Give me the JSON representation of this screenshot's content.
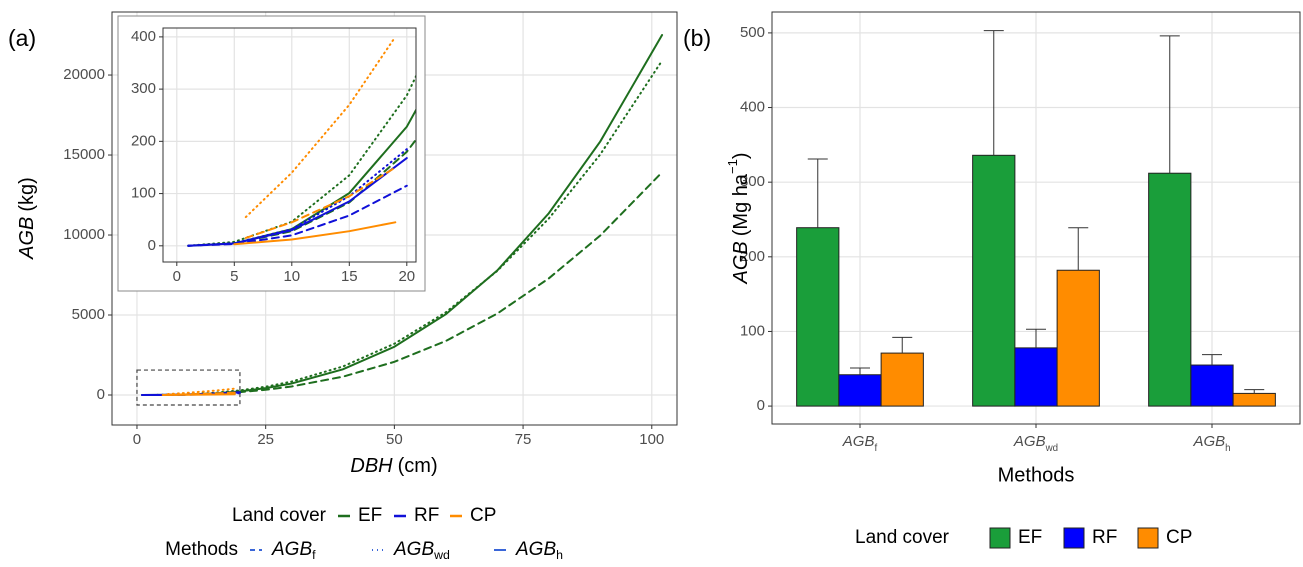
{
  "chart_data": [
    {
      "type": "line",
      "tag": "(a)",
      "xlabel": {
        "var": "DBH",
        "unit": "(cm)"
      },
      "ylabel": {
        "var": "AGB",
        "unit": "(kg)"
      },
      "xlim": [
        -4.85,
        104.9
      ],
      "ylim": [
        -1875,
        23940
      ],
      "xticks": [
        0,
        25,
        50,
        75,
        100
      ],
      "yticks": [
        0,
        5000,
        10000,
        15000,
        20000
      ],
      "grid": true,
      "legend_position": "bottom",
      "legend_titles": {
        "land_cover": "Land cover",
        "methods": "Methods"
      },
      "method_legend_color": "#3a66d8",
      "methods": [
        {
          "name": "AGB",
          "sub": "f",
          "dash": "dashed"
        },
        {
          "name": "AGB",
          "sub": "wd",
          "dash": "dotted"
        },
        {
          "name": "AGB",
          "sub": "h",
          "dash": "solid"
        }
      ],
      "series": [
        {
          "name": "EF",
          "color": "#1e6e1e",
          "lines": [
            {
              "x": [
                1,
                5,
                10,
                15,
                20,
                25,
                30,
                40,
                50,
                60,
                70,
                80,
                90,
                102
              ],
              "values": [
                0.06,
                4.4,
                28,
                83,
                180,
                326,
                531,
                1145,
                2072,
                3377,
                5093,
                7290,
                9970,
                13920
              ]
            },
            {
              "x": [
                1,
                5,
                10,
                15,
                20,
                25,
                30,
                40,
                50,
                60,
                70,
                80,
                90,
                102
              ],
              "values": [
                0.11,
                7.5,
                46,
                135,
                288,
                517,
                836,
                1783,
                3205,
                5170,
                7760,
                11030,
                15040,
                20900
              ]
            },
            {
              "x": [
                1,
                5,
                10,
                15,
                20,
                25,
                30,
                40,
                50,
                60,
                70,
                80,
                90,
                102
              ],
              "values": [
                0.05,
                4.6,
                32,
                101,
                228,
                427,
                714,
                1606,
                3015,
                5050,
                7790,
                11360,
                15850,
                22500
              ]
            }
          ]
        },
        {
          "name": "RF",
          "color": "#1010d8",
          "lines": [
            {
              "x": [
                1,
                5,
                10,
                15,
                20
              ],
              "values": [
                0.05,
                3.5,
                20,
                58,
                115
              ]
            },
            {
              "x": [
                1,
                5,
                10,
                15,
                20
              ],
              "values": [
                0.1,
                5,
                32,
                95,
                185
              ]
            },
            {
              "x": [
                1,
                5,
                10,
                15,
                20
              ],
              "values": [
                0.06,
                4.5,
                30,
                85,
                168
              ]
            }
          ]
        },
        {
          "name": "CP",
          "color": "#ff8c00",
          "lines": [
            {
              "x": [
                6,
                10,
                15,
                19
              ],
              "values": [
                15,
                45,
                95,
                150
              ]
            },
            {
              "x": [
                6,
                10,
                15,
                19
              ],
              "values": [
                55,
                140,
                270,
                400
              ]
            },
            {
              "x": [
                5,
                10,
                15,
                19
              ],
              "values": [
                3,
                12,
                28,
                45
              ]
            }
          ]
        }
      ],
      "zoom_box": {
        "xlim": [
          0,
          20
        ],
        "ylim": [
          -625,
          1560
        ]
      },
      "inset": {
        "xlim": [
          -1.2,
          20.8
        ],
        "ylim": [
          -31,
          417
        ],
        "xticks": [
          0,
          5,
          10,
          15,
          20
        ],
        "yticks": [
          0,
          100,
          200,
          300,
          400
        ]
      }
    },
    {
      "type": "bar",
      "tag": "(b)",
      "xlabel": "Methods",
      "ylabel": {
        "var": "AGB",
        "unit": "(Mg ha",
        "unit_exp": "−1",
        "unit_close": ")"
      },
      "categories": [
        {
          "name": "AGB",
          "sub": "f"
        },
        {
          "name": "AGB",
          "sub": "wd"
        },
        {
          "name": "AGB",
          "sub": "h"
        }
      ],
      "ylim": [
        -24,
        528
      ],
      "yticks": [
        0,
        100,
        200,
        300,
        400,
        500
      ],
      "grid": true,
      "legend_position": "bottom",
      "legend_title": "Land cover",
      "series": [
        {
          "name": "EF",
          "color": "#1a9e3a",
          "values": [
            239,
            336,
            312
          ],
          "errors": [
            92,
            167,
            184
          ]
        },
        {
          "name": "RF",
          "color": "#0000ff",
          "values": [
            42,
            78,
            55
          ],
          "errors": [
            9,
            25,
            14
          ]
        },
        {
          "name": "CP",
          "color": "#ff8c00",
          "values": [
            71,
            182,
            17
          ],
          "errors": [
            21,
            57,
            5
          ]
        }
      ]
    }
  ]
}
